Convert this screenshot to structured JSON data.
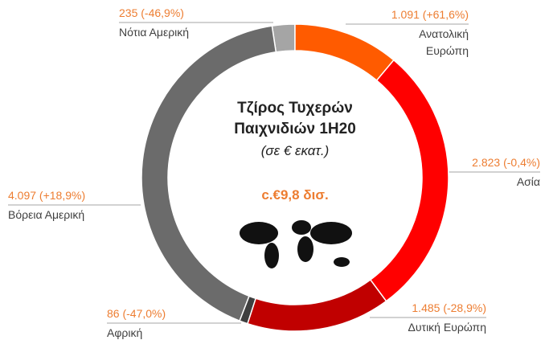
{
  "chart_data": {
    "type": "donut",
    "title": "Τζίρος Τυχερών Παιχνιδιών 1H20",
    "subtitle": "(σε € εκατ.)",
    "annotation": "c.€9,8 δισ.",
    "categories": [
      "Ανατολική Ευρώπη",
      "Ασία",
      "Δυτική Ευρώπη",
      "Αφρική",
      "Βόρεια Αμερική",
      "Νότια Αμερική"
    ],
    "values": [
      1091,
      2823,
      1485,
      86,
      4097,
      235
    ],
    "value_labels": [
      "1.091 (+61,6%)",
      "2.823 (-0,4%)",
      "1.485 (-28,9%)",
      "86 (-47,0%)",
      "4.097 (+18,9%)",
      "235 (-46,9%)"
    ],
    "colors": [
      "#ff5b00",
      "#ff0000",
      "#c00000",
      "#3f3f3f",
      "#6b6b6b",
      "#a5a5a5"
    ]
  }
}
